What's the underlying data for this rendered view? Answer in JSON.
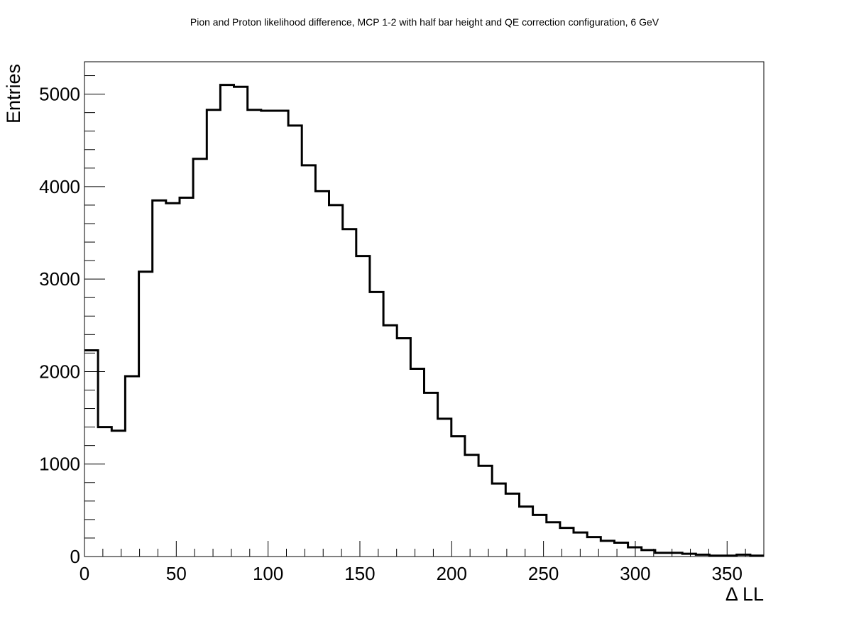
{
  "chart_data": {
    "type": "histogram",
    "title": "Pion and Proton likelihood difference, MCP 1-2 with half bar height and QE correction configuration, 6 GeV",
    "xlabel": "Δ LL",
    "ylabel": "Entries",
    "xlim": [
      0,
      370
    ],
    "ylim": [
      0,
      5350
    ],
    "bin_width": 7.4,
    "x_ticks": [
      0,
      50,
      100,
      150,
      200,
      250,
      300,
      350
    ],
    "y_ticks": [
      0,
      1000,
      2000,
      3000,
      4000,
      5000
    ],
    "grid": false,
    "legend": "none",
    "line_color": "#000000",
    "series": [
      {
        "bin_edges_start": 0,
        "values": [
          2230,
          1400,
          1360,
          1950,
          3080,
          3850,
          3820,
          3880,
          4300,
          4830,
          5100,
          5080,
          4830,
          4820,
          4820,
          4660,
          4230,
          3950,
          3800,
          3540,
          3250,
          2860,
          2500,
          2360,
          2030,
          1770,
          1490,
          1300,
          1100,
          980,
          790,
          680,
          540,
          450,
          370,
          310,
          260,
          210,
          170,
          150,
          100,
          70,
          40,
          40,
          30,
          20,
          10,
          10,
          20,
          10
        ]
      }
    ]
  }
}
